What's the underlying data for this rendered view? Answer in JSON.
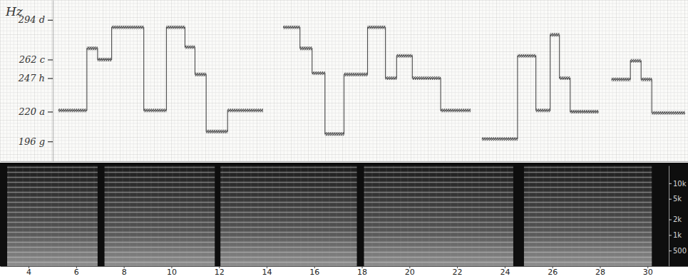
{
  "chart_data": [
    {
      "type": "line",
      "ylabel": "Hz",
      "x": [
        5.25,
        6.45,
        6.9,
        7.49,
        8.84,
        9.79,
        10.57,
        10.99,
        11.46,
        12.36,
        13.85,
        14.27,
        14.69,
        15.4,
        15.91,
        16.45,
        17.25,
        18.24,
        18.99,
        19.46,
        20.12,
        21.31,
        22.57,
        22.8,
        23.04,
        24.54,
        25.31,
        25.91,
        26.3,
        26.75,
        27.94,
        28.2,
        28.48,
        29.28,
        29.73,
        30.18,
        31.58
      ],
      "values": [
        221,
        271,
        262,
        288,
        221,
        288,
        272,
        250,
        204,
        221,
        221,
        null,
        288,
        271,
        251,
        202,
        250,
        288,
        247,
        265,
        247,
        221,
        221,
        null,
        198,
        265,
        221,
        282,
        247,
        220,
        220,
        null,
        246,
        261,
        246,
        219,
        219
      ],
      "color": "#4a4a4a",
      "line_style": "step",
      "xlim": [
        2.8,
        31.7
      ],
      "ylim": [
        180,
        310
      ],
      "yticks": [
        {
          "value": 294,
          "label": "294 d"
        },
        {
          "value": 262,
          "label": "262 c"
        },
        {
          "value": 247,
          "label": "247 h"
        },
        {
          "value": 220,
          "label": "220 a"
        },
        {
          "value": 196,
          "label": "196 g"
        }
      ],
      "tick_labels": "y"
    },
    {
      "type": "spectrogram",
      "segments": [
        {
          "start": 3.1,
          "end": 6.9
        },
        {
          "start": 7.19,
          "end": 11.82
        },
        {
          "start": 12.06,
          "end": 17.79
        },
        {
          "start": 18.09,
          "end": 24.36
        },
        {
          "start": 24.81,
          "end": 30.18
        }
      ],
      "xlim": [
        2.8,
        31.7
      ],
      "xticks": [
        4,
        6,
        8,
        10,
        12,
        14,
        16,
        18,
        20,
        22,
        24,
        26,
        28,
        30
      ],
      "ylim": [
        250,
        22000
      ],
      "yticks": [
        {
          "value": 10000,
          "label": "10k"
        },
        {
          "value": 5000,
          "label": "5k"
        },
        {
          "value": 2000,
          "label": "2k"
        },
        {
          "value": 1000,
          "label": "1k"
        },
        500
      ],
      "log": "y"
    }
  ]
}
